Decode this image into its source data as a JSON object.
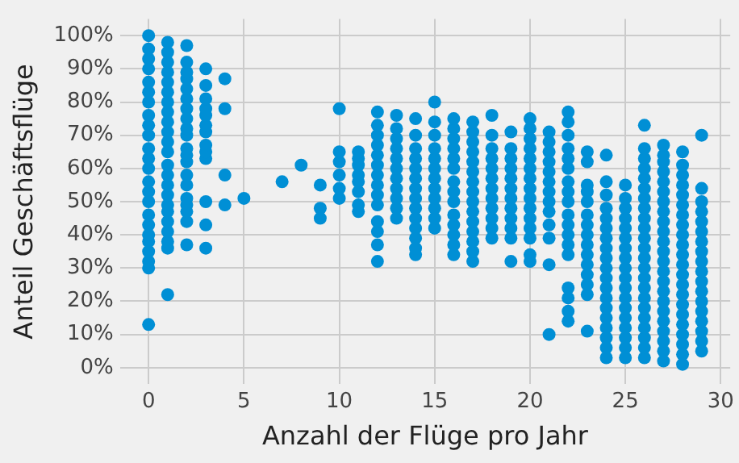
{
  "chart_data": {
    "type": "scatter",
    "xlabel": "Anzahl der Flüge pro Jahr",
    "ylabel": "Anteil Geschäftsflüge",
    "color": "#008fd5",
    "marker": "circle",
    "grid": true,
    "legend": false,
    "xlim": [
      -1.5,
      30.5
    ],
    "xticks": [
      0,
      5,
      10,
      15,
      20,
      25,
      30
    ],
    "ylim": [
      -5,
      105
    ],
    "yticks": [
      {
        "value": 0,
        "label": "0%"
      },
      {
        "value": 10,
        "label": "10%"
      },
      {
        "value": 20,
        "label": "20%"
      },
      {
        "value": 30,
        "label": "30%"
      },
      {
        "value": 40,
        "label": "40%"
      },
      {
        "value": 50,
        "label": "50%"
      },
      {
        "value": 60,
        "label": "60%"
      },
      {
        "value": 70,
        "label": "70%"
      },
      {
        "value": 80,
        "label": "80%"
      },
      {
        "value": 90,
        "label": "90%"
      },
      {
        "value": 100,
        "label": "100%"
      }
    ],
    "x": [
      0,
      0,
      0,
      0,
      0,
      0,
      0,
      0,
      0,
      0,
      0,
      0,
      0,
      0,
      0,
      0,
      0,
      0,
      0,
      0,
      0,
      0,
      0,
      0,
      1,
      1,
      1,
      1,
      1,
      1,
      1,
      1,
      1,
      1,
      1,
      1,
      1,
      1,
      1,
      1,
      1,
      1,
      1,
      1,
      1,
      1,
      1,
      2,
      2,
      2,
      2,
      2,
      2,
      2,
      2,
      2,
      2,
      2,
      2,
      2,
      2,
      2,
      2,
      2,
      2,
      2,
      2,
      3,
      3,
      3,
      3,
      3,
      3,
      3,
      3,
      3,
      3,
      3,
      3,
      3,
      4,
      4,
      4,
      4,
      5,
      7,
      8,
      9,
      9,
      9,
      10,
      10,
      10,
      10,
      10,
      10,
      11,
      11,
      11,
      11,
      11,
      11,
      11,
      11,
      12,
      12,
      12,
      12,
      12,
      12,
      12,
      12,
      12,
      12,
      12,
      12,
      12,
      12,
      13,
      13,
      13,
      13,
      13,
      13,
      13,
      13,
      13,
      13,
      13,
      14,
      14,
      14,
      14,
      14,
      14,
      14,
      14,
      14,
      14,
      14,
      14,
      14,
      14,
      15,
      15,
      15,
      15,
      15,
      15,
      15,
      15,
      15,
      15,
      15,
      15,
      16,
      16,
      16,
      16,
      16,
      16,
      16,
      16,
      16,
      16,
      16,
      16,
      16,
      16,
      17,
      17,
      17,
      17,
      17,
      17,
      17,
      17,
      17,
      17,
      17,
      17,
      17,
      17,
      17,
      18,
      18,
      18,
      18,
      18,
      18,
      18,
      18,
      18,
      18,
      18,
      18,
      19,
      19,
      19,
      19,
      19,
      19,
      19,
      19,
      19,
      19,
      19,
      19,
      20,
      20,
      20,
      20,
      20,
      20,
      20,
      20,
      20,
      20,
      20,
      20,
      20,
      20,
      20,
      21,
      21,
      21,
      21,
      21,
      21,
      21,
      21,
      21,
      21,
      21,
      21,
      21,
      22,
      22,
      22,
      22,
      22,
      22,
      22,
      22,
      22,
      22,
      22,
      22,
      22,
      22,
      22,
      22,
      22,
      22,
      23,
      23,
      23,
      23,
      23,
      23,
      23,
      23,
      23,
      23,
      23,
      23,
      23,
      23,
      23,
      24,
      24,
      24,
      24,
      24,
      24,
      24,
      24,
      24,
      24,
      24,
      24,
      24,
      24,
      24,
      24,
      24,
      24,
      24,
      25,
      25,
      25,
      25,
      25,
      25,
      25,
      25,
      25,
      25,
      25,
      25,
      25,
      25,
      25,
      25,
      25,
      25,
      26,
      26,
      26,
      26,
      26,
      26,
      26,
      26,
      26,
      26,
      26,
      26,
      26,
      26,
      26,
      26,
      26,
      26,
      26,
      26,
      26,
      26,
      26,
      27,
      27,
      27,
      27,
      27,
      27,
      27,
      27,
      27,
      27,
      27,
      27,
      27,
      27,
      27,
      27,
      27,
      27,
      27,
      27,
      27,
      27,
      27,
      28,
      28,
      28,
      28,
      28,
      28,
      28,
      28,
      28,
      28,
      28,
      28,
      28,
      28,
      28,
      28,
      28,
      28,
      28,
      28,
      28,
      28,
      29,
      29,
      29,
      29,
      29,
      29,
      29,
      29,
      29,
      29,
      29,
      29,
      29,
      29,
      29,
      29,
      29,
      29
    ],
    "values": [
      13,
      30,
      32,
      35,
      38,
      40,
      43,
      46,
      50,
      53,
      56,
      60,
      63,
      66,
      70,
      73,
      76,
      80,
      83,
      86,
      90,
      93,
      96,
      100,
      22,
      36,
      38,
      41,
      44,
      47,
      49,
      52,
      55,
      58,
      61,
      65,
      68,
      71,
      74,
      77,
      80,
      83,
      86,
      89,
      92,
      95,
      98,
      37,
      44,
      47,
      49,
      51,
      55,
      58,
      62,
      64,
      66,
      70,
      72,
      75,
      78,
      81,
      84,
      87,
      89,
      92,
      97,
      36,
      43,
      50,
      63,
      65,
      67,
      71,
      73,
      76,
      78,
      81,
      85,
      90,
      49,
      58,
      78,
      87,
      51,
      56,
      61,
      45,
      48,
      55,
      51,
      54,
      58,
      62,
      65,
      78,
      47,
      49,
      53,
      56,
      58,
      61,
      63,
      65,
      32,
      37,
      41,
      44,
      49,
      52,
      55,
      58,
      61,
      64,
      67,
      70,
      73,
      77,
      45,
      48,
      51,
      54,
      57,
      60,
      63,
      66,
      69,
      72,
      76,
      34,
      36,
      39,
      42,
      45,
      48,
      51,
      54,
      57,
      60,
      63,
      66,
      70,
      75,
      42,
      45,
      48,
      51,
      54,
      57,
      60,
      63,
      66,
      70,
      74,
      80,
      34,
      37,
      40,
      43,
      46,
      50,
      53,
      56,
      60,
      63,
      66,
      69,
      72,
      75,
      32,
      35,
      38,
      41,
      44,
      47,
      50,
      53,
      56,
      59,
      62,
      65,
      68,
      71,
      74,
      39,
      42,
      45,
      48,
      51,
      54,
      57,
      60,
      63,
      66,
      70,
      76,
      32,
      39,
      42,
      45,
      48,
      51,
      54,
      57,
      60,
      63,
      66,
      71,
      32,
      34,
      39,
      42,
      45,
      48,
      51,
      54,
      57,
      60,
      63,
      66,
      69,
      72,
      75,
      10,
      31,
      39,
      43,
      47,
      50,
      53,
      56,
      59,
      62,
      65,
      68,
      71,
      14,
      17,
      21,
      24,
      34,
      37,
      40,
      43,
      46,
      50,
      53,
      56,
      60,
      63,
      66,
      70,
      74,
      77,
      11,
      22,
      25,
      28,
      31,
      34,
      37,
      40,
      43,
      46,
      50,
      53,
      55,
      62,
      65,
      3,
      6,
      9,
      12,
      15,
      18,
      21,
      24,
      27,
      30,
      33,
      36,
      39,
      42,
      45,
      48,
      52,
      56,
      64,
      3,
      6,
      9,
      12,
      15,
      18,
      21,
      24,
      27,
      30,
      33,
      36,
      39,
      42,
      45,
      48,
      51,
      55,
      3,
      6,
      9,
      12,
      15,
      18,
      21,
      24,
      27,
      30,
      33,
      36,
      39,
      42,
      45,
      48,
      51,
      54,
      57,
      60,
      63,
      66,
      73,
      2,
      5,
      8,
      11,
      14,
      17,
      20,
      23,
      26,
      29,
      32,
      35,
      38,
      41,
      44,
      47,
      50,
      53,
      56,
      59,
      62,
      64,
      67,
      1,
      4,
      7,
      10,
      13,
      16,
      19,
      22,
      25,
      28,
      31,
      34,
      37,
      40,
      43,
      46,
      49,
      52,
      55,
      58,
      61,
      65,
      5,
      8,
      11,
      14,
      17,
      20,
      23,
      26,
      29,
      32,
      35,
      38,
      41,
      44,
      47,
      50,
      54,
      70
    ]
  }
}
